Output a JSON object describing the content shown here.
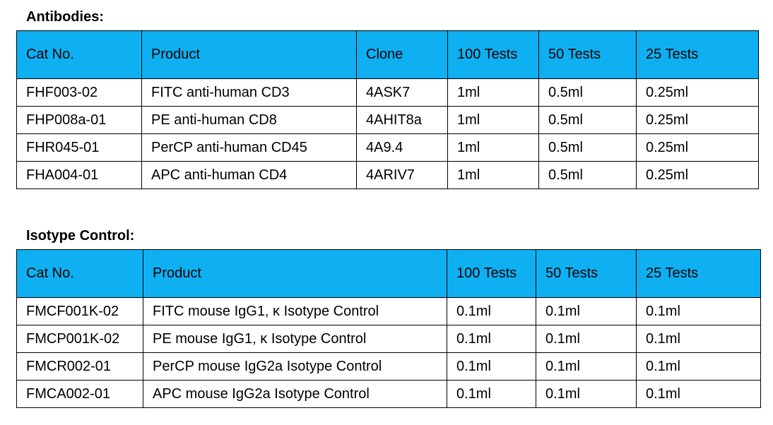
{
  "antibodies": {
    "title": "Antibodies:",
    "headers": [
      "Cat No.",
      "Product",
      "Clone",
      "100 Tests",
      "50 Tests",
      "25 Tests"
    ],
    "rows": [
      [
        "FHF003-02",
        "FITC anti-human CD3",
        "4ASK7",
        "1ml",
        "0.5ml",
        "0.25ml"
      ],
      [
        "FHP008a-01",
        "PE anti-human CD8",
        "4AHIT8a",
        "1ml",
        "0.5ml",
        "0.25ml"
      ],
      [
        "FHR045-01",
        "PerCP anti-human CD45",
        "4A9.4",
        "1ml",
        "0.5ml",
        "0.25ml"
      ],
      [
        "FHA004-01",
        "APC anti-human CD4",
        "4ARIV7",
        "1ml",
        "0.5ml",
        "0.25ml"
      ]
    ]
  },
  "isotype": {
    "title": "Isotype Control:",
    "headers": [
      "Cat No.",
      "Product",
      "100 Tests",
      "50 Tests",
      "25 Tests"
    ],
    "rows": [
      [
        "FMCF001K-02",
        "FITC mouse IgG1, κ Isotype Control",
        "0.1ml",
        "0.1ml",
        "0.1ml"
      ],
      [
        "FMCP001K-02",
        "PE mouse IgG1, κ Isotype Control",
        "0.1ml",
        "0.1ml",
        "0.1ml"
      ],
      [
        "FMCR002-01",
        "PerCP mouse IgG2a Isotype Control",
        "0.1ml",
        "0.1ml",
        "0.1ml"
      ],
      [
        "FMCA002-01",
        "APC mouse IgG2a Isotype Control",
        "0.1ml",
        "0.1ml",
        "0.1ml"
      ]
    ]
  },
  "colors": {
    "header_bg": "#0fb0f2",
    "border": "#000000"
  }
}
